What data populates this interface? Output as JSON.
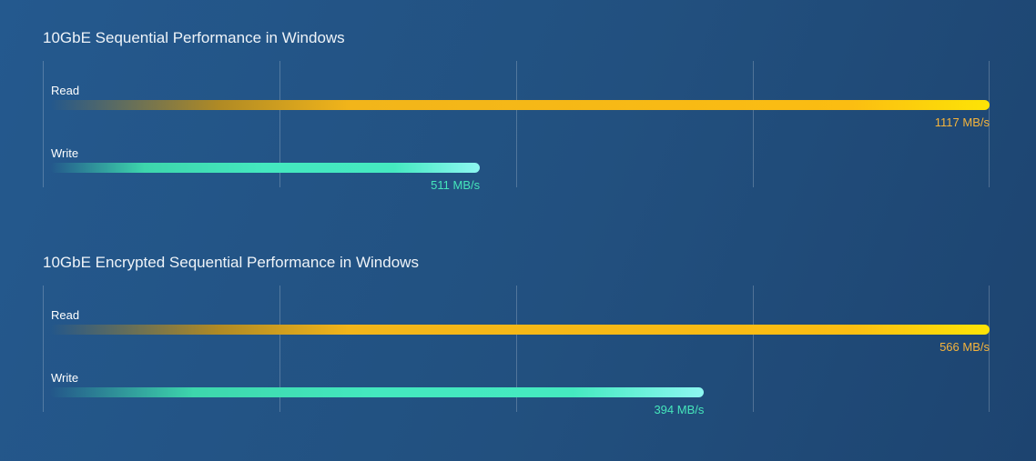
{
  "colors": {
    "read": "#fbbd12",
    "write": "#45e9c0",
    "read_value": "#f6b43c",
    "write_value": "#45e6bb"
  },
  "chart_data": [
    {
      "type": "bar",
      "orientation": "horizontal",
      "title": "10GbE Sequential Performance in Windows",
      "categories": [
        "Read",
        "Write"
      ],
      "values": [
        1117,
        511
      ],
      "value_labels": [
        "1117 MB/s",
        "511 MB/s"
      ],
      "unit": "MB/s",
      "xlim": [
        0,
        1117
      ],
      "grid": true
    },
    {
      "type": "bar",
      "orientation": "horizontal",
      "title": "10GbE Encrypted Sequential Performance in Windows",
      "categories": [
        "Read",
        "Write"
      ],
      "values": [
        566,
        394
      ],
      "value_labels": [
        "566 MB/s",
        "394 MB/s"
      ],
      "unit": "MB/s",
      "xlim": [
        0,
        566
      ],
      "grid": true
    }
  ]
}
